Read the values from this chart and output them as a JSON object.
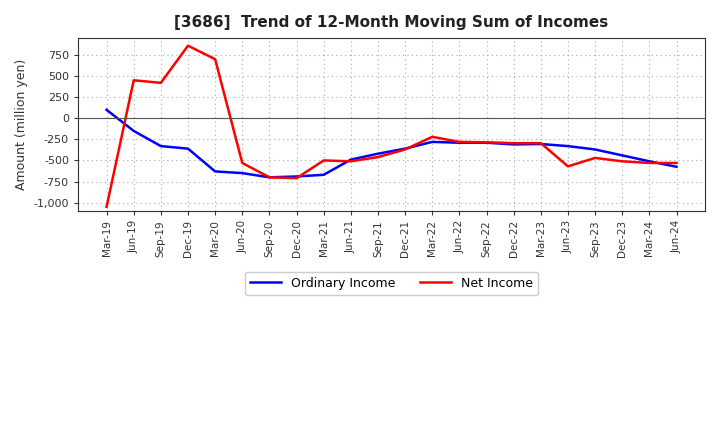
{
  "title": "[3686]  Trend of 12-Month Moving Sum of Incomes",
  "ylabel": "Amount (million yen)",
  "ylim": [
    -1100,
    950
  ],
  "yticks": [
    -1000,
    -750,
    -500,
    -250,
    0,
    250,
    500,
    750
  ],
  "background_color": "#ffffff",
  "plot_bg_color": "#ffffff",
  "grid_color": "#aaaaaa",
  "x_labels": [
    "Mar-19",
    "Jun-19",
    "Sep-19",
    "Dec-19",
    "Mar-20",
    "Jun-20",
    "Sep-20",
    "Dec-20",
    "Mar-21",
    "Jun-21",
    "Sep-21",
    "Dec-21",
    "Mar-22",
    "Jun-22",
    "Sep-22",
    "Dec-22",
    "Mar-23",
    "Jun-23",
    "Sep-23",
    "Dec-23",
    "Mar-24",
    "Jun-24"
  ],
  "ordinary_income": [
    100,
    -150,
    -330,
    -360,
    -630,
    -650,
    -700,
    -690,
    -670,
    -490,
    -420,
    -360,
    -280,
    -290,
    -290,
    -310,
    -305,
    -330,
    -370,
    -440,
    -510,
    -575
  ],
  "net_income": [
    -1050,
    450,
    420,
    860,
    700,
    -530,
    -700,
    -710,
    -500,
    -510,
    -460,
    -370,
    -220,
    -280,
    -285,
    -295,
    -295,
    -570,
    -470,
    -510,
    -530,
    -530
  ],
  "ordinary_color": "#0000ff",
  "net_color": "#ff0000",
  "legend_ordinary": "Ordinary Income",
  "legend_net": "Net Income",
  "line_width": 1.8
}
